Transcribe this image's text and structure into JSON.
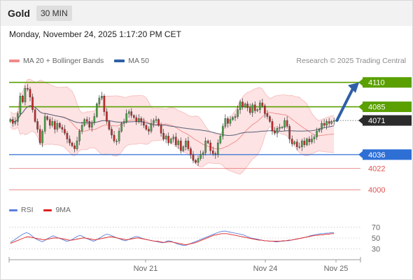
{
  "header": {
    "instrument": "Gold",
    "timeframe": "30 MIN"
  },
  "datetime": "Monday, November 24, 2025 1:17:20 PM CET",
  "legend": [
    {
      "label": "MA 20 + Bollinger Bands",
      "color": "#f08a8a"
    },
    {
      "label": "MA 50",
      "color": "#2f5fa6"
    }
  ],
  "research": "Research © 2025 Trading Central",
  "rsi_legend": [
    {
      "label": "RSI",
      "color": "#5b7fdb"
    },
    {
      "label": "9MA",
      "color": "#e02020"
    }
  ],
  "colors": {
    "resistance": "#5aa000",
    "pivot": "#2e6fd6",
    "support": "#e05050",
    "candle_up": "#4aa94a",
    "candle_down": "#cc2a2a",
    "bollinger_fill": "#fde3e3",
    "ma50": "#55607a",
    "arrow": "#2f5fa6"
  },
  "chart_data": [
    {
      "type": "candlestick",
      "title": "Gold",
      "timeframe": "30 MIN",
      "x_ticks": [
        "Nov 21",
        "Nov 24",
        "Nov 25"
      ],
      "ylim": [
        3990,
        4122
      ],
      "levels": [
        {
          "value": 4110,
          "label": "4110",
          "kind": "resistance"
        },
        {
          "value": 4085,
          "label": "4085",
          "kind": "resistance"
        },
        {
          "value": 4071,
          "label": "4071",
          "kind": "last"
        },
        {
          "value": 4036,
          "label": "4036",
          "kind": "pivot"
        },
        {
          "value": 4022,
          "label": "4022",
          "kind": "support"
        },
        {
          "value": 4000,
          "label": "4000",
          "kind": "support"
        }
      ],
      "close_series": [
        4072,
        4068,
        4070,
        4078,
        4096,
        4090,
        4104,
        4103,
        4095,
        4082,
        4070,
        4062,
        4048,
        4060,
        4075,
        4072,
        4066,
        4070,
        4062,
        4068,
        4064,
        4062,
        4058,
        4052,
        4048,
        4045,
        4042,
        4050,
        4060,
        4066,
        4072,
        4070,
        4064,
        4069,
        4075,
        4088,
        4094,
        4096,
        4080,
        4070,
        4062,
        4056,
        4050,
        4050,
        4060,
        4068,
        4070,
        4078,
        4080,
        4076,
        4074,
        4070,
        4073,
        4070,
        4066,
        4062,
        4060,
        4068,
        4071,
        4072,
        4066,
        4058,
        4052,
        4055,
        4048,
        4052,
        4054,
        4046,
        4050,
        4040,
        4044,
        4050,
        4042,
        4036,
        4030,
        4028,
        4032,
        4036,
        4038,
        4050,
        4048,
        4040,
        4037,
        4036,
        4048,
        4055,
        4065,
        4073,
        4068,
        4072,
        4074,
        4075,
        4082,
        4090,
        4085,
        4088,
        4084,
        4079,
        4087,
        4081,
        4082,
        4089,
        4086,
        4078,
        4075,
        4070,
        4060,
        4058,
        4063,
        4064,
        4064,
        4071,
        4065,
        4052,
        4047,
        4049,
        4044,
        4044,
        4050,
        4046,
        4052,
        4049,
        4052,
        4054,
        4060,
        4062,
        4068,
        4066,
        4070,
        4068,
        4070,
        4071
      ]
    },
    {
      "type": "line",
      "name_indicator": "RSI",
      "ylim": [
        15,
        85
      ],
      "y_ticks": [
        70,
        50,
        30
      ],
      "series_rsi": [
        42,
        45,
        48,
        52,
        55,
        58,
        60,
        58,
        54,
        50,
        47,
        45,
        43,
        46,
        49,
        52,
        54,
        52,
        50,
        48,
        46,
        44,
        45,
        47,
        50,
        53,
        55,
        53,
        50,
        48,
        46,
        44,
        46,
        49,
        52,
        55,
        57,
        56,
        54,
        52,
        50,
        48,
        46,
        45,
        47,
        49,
        51,
        53,
        52,
        50,
        48,
        47,
        46,
        45,
        44,
        43,
        42,
        41,
        43,
        45,
        44,
        42,
        40,
        38,
        37,
        36,
        37,
        39,
        41,
        43,
        45,
        47,
        49,
        51,
        53,
        55,
        57,
        59,
        61,
        62,
        63,
        62,
        61,
        60,
        59,
        58,
        57,
        56,
        54,
        52,
        50,
        49,
        48,
        47,
        46,
        45,
        45,
        44,
        44,
        43,
        43,
        44,
        44,
        45,
        45,
        46,
        47,
        48,
        49,
        50,
        51,
        52,
        54,
        55,
        56,
        57,
        58,
        58,
        59,
        59,
        60,
        60
      ],
      "series_9ma": [
        40,
        42,
        44,
        46,
        48,
        50,
        52,
        52,
        51,
        50,
        49,
        48,
        47,
        47,
        48,
        49,
        50,
        50,
        50,
        49,
        48,
        47,
        46,
        46,
        47,
        48,
        49,
        50,
        50,
        49,
        48,
        47,
        47,
        48,
        49,
        50,
        51,
        52,
        52,
        51,
        50,
        49,
        48,
        47,
        47,
        48,
        49,
        50,
        50,
        49,
        48,
        47,
        46,
        45,
        44,
        44,
        43,
        42,
        42,
        43,
        43,
        42,
        41,
        40,
        39,
        38,
        38,
        39,
        40,
        41,
        43,
        45,
        47,
        49,
        51,
        53,
        55,
        56,
        57,
        58,
        58,
        58,
        57,
        56,
        55,
        54,
        53,
        52,
        51,
        50,
        49,
        48,
        47,
        46,
        46,
        45,
        45,
        44,
        44,
        44,
        44,
        44,
        45,
        45,
        46,
        46,
        47,
        48,
        49,
        50,
        51,
        52,
        53,
        54,
        55,
        55,
        56,
        56,
        57,
        57,
        58,
        58
      ]
    }
  ]
}
